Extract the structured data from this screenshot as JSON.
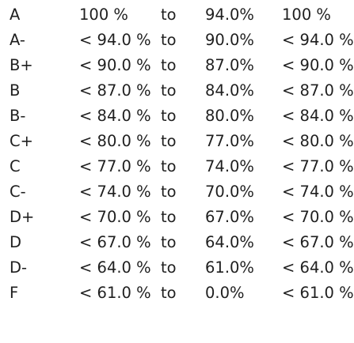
{
  "grading_scale": {
    "rows": [
      {
        "letter": "A",
        "min": "100 %",
        "to": "to",
        "max": "94.0%",
        "range": "100 %"
      },
      {
        "letter": "A-",
        "min": "< 94.0 %",
        "to": "to",
        "max": "90.0%",
        "range": "< 94.0 %"
      },
      {
        "letter": "B+",
        "min": "< 90.0 %",
        "to": "to",
        "max": "87.0%",
        "range": "< 90.0 %"
      },
      {
        "letter": "B",
        "min": "< 87.0 %",
        "to": "to",
        "max": "84.0%",
        "range": "< 87.0 %"
      },
      {
        "letter": "B-",
        "min": "< 84.0 %",
        "to": "to",
        "max": "80.0%",
        "range": "< 84.0 %"
      },
      {
        "letter": "C+",
        "min": "< 80.0 %",
        "to": "to",
        "max": "77.0%",
        "range": "< 80.0 %"
      },
      {
        "letter": "C",
        "min": "< 77.0 %",
        "to": "to",
        "max": "74.0%",
        "range": "< 77.0 %"
      },
      {
        "letter": "C-",
        "min": "< 74.0 %",
        "to": "to",
        "max": "70.0%",
        "range": "< 74.0 %"
      },
      {
        "letter": "D+",
        "min": "< 70.0 %",
        "to": "to",
        "max": "67.0%",
        "range": "< 70.0 %"
      },
      {
        "letter": "D",
        "min": "< 67.0 %",
        "to": "to",
        "max": "64.0%",
        "range": "< 67.0 %"
      },
      {
        "letter": "D-",
        "min": "< 64.0 %",
        "to": "to",
        "max": "61.0%",
        "range": "< 64.0 %"
      },
      {
        "letter": "F",
        "min": "< 61.0 %",
        "to": "to",
        "max": "0.0%",
        "range": "< 61.0 %"
      }
    ]
  }
}
